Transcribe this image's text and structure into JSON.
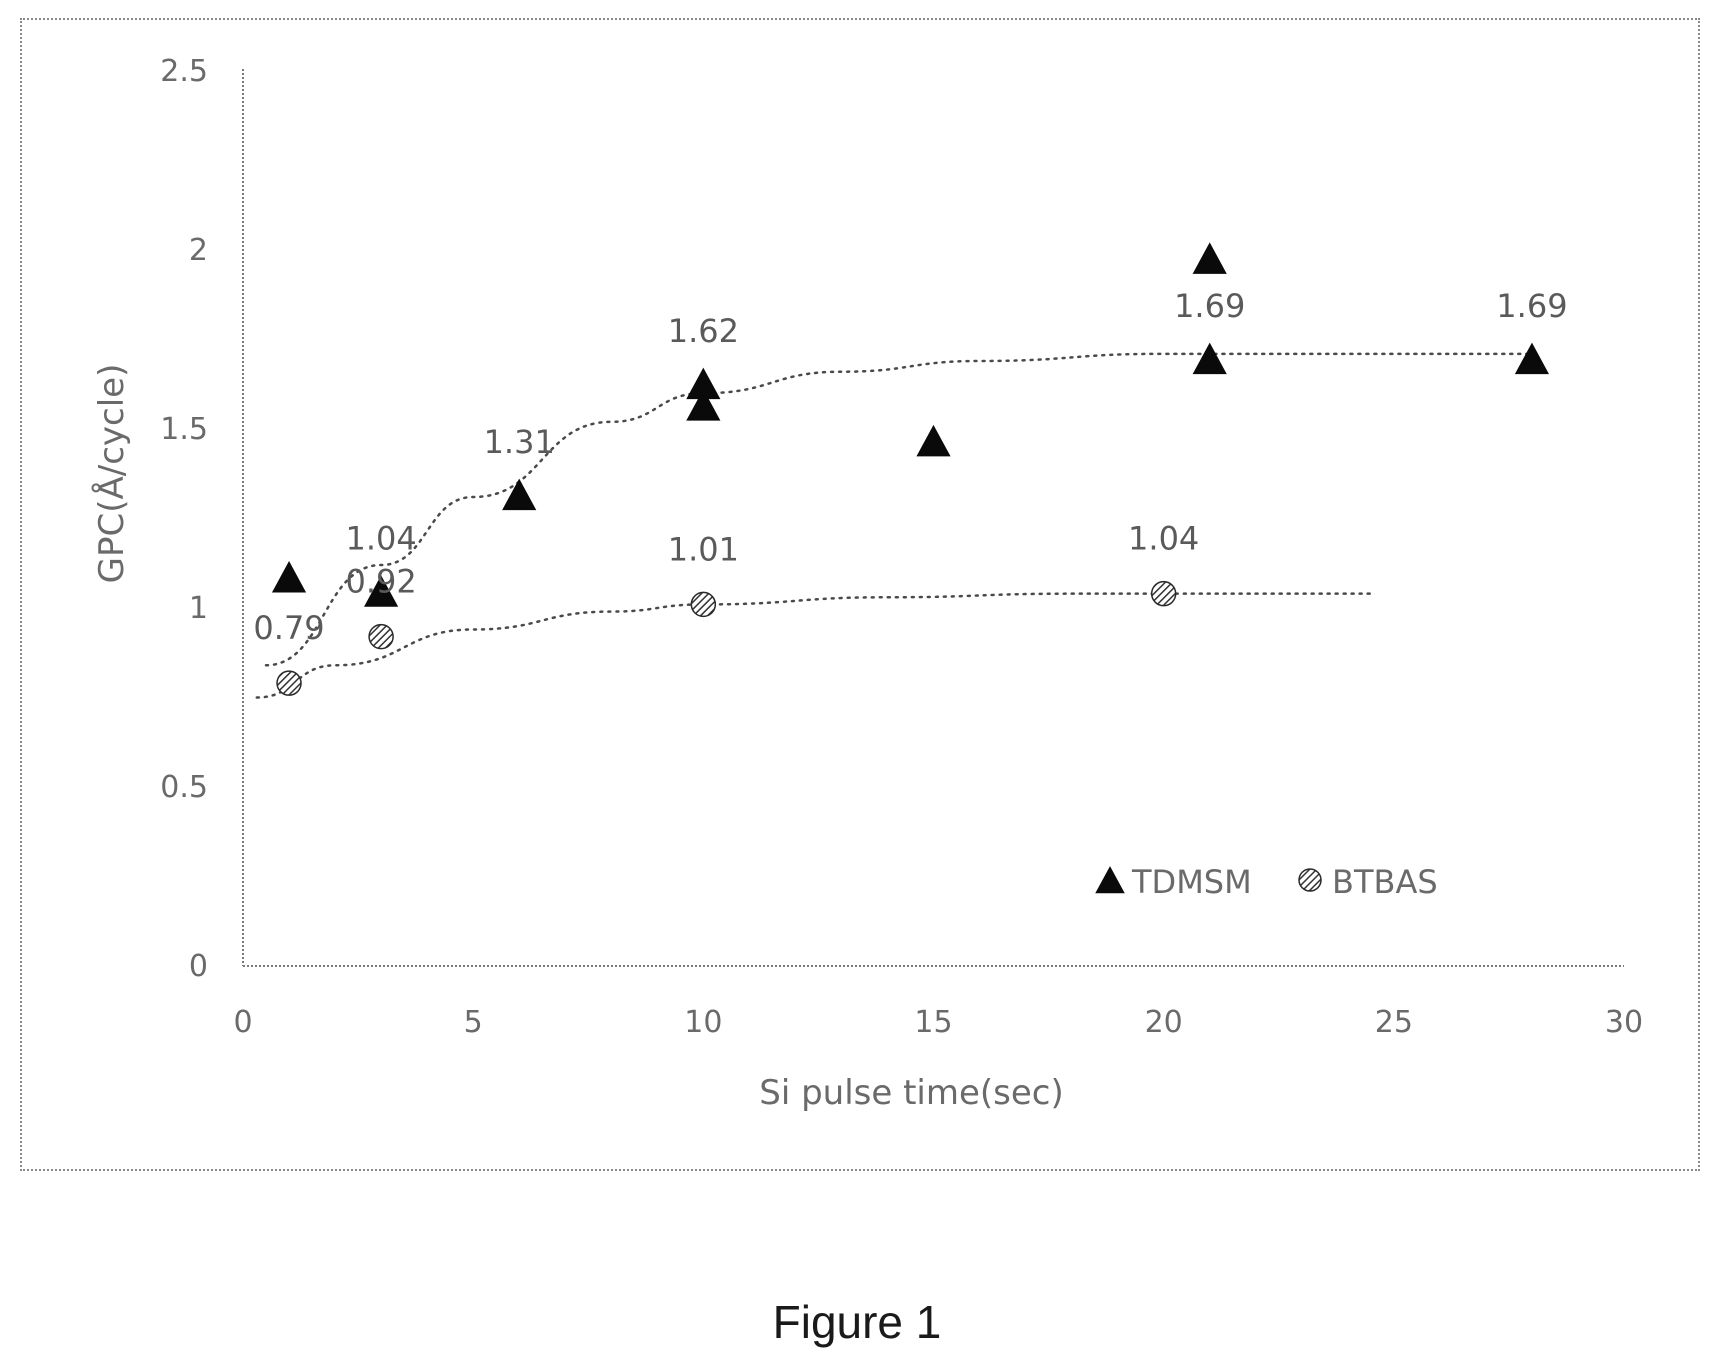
{
  "caption": "Figure 1",
  "chart_data": {
    "type": "scatter",
    "title": "",
    "xlabel": "Si pulse time(sec)",
    "ylabel": "GPC(Å/cycle)",
    "xlim": [
      0,
      30
    ],
    "ylim": [
      0,
      2.5
    ],
    "x_ticks": [
      "0",
      "5",
      "10",
      "15",
      "20",
      "25",
      "30"
    ],
    "y_ticks": [
      "0",
      "0.5",
      "1",
      "1.5",
      "2",
      "2.5"
    ],
    "grid": false,
    "legend_position": "bottom-right",
    "series": [
      {
        "name": "TDMSM",
        "marker": "triangle",
        "color": "#000000",
        "points": [
          {
            "x": 1,
            "y": 1.08
          },
          {
            "x": 3,
            "y": 1.04
          },
          {
            "x": 6,
            "y": 1.31
          },
          {
            "x": 10,
            "y": 1.62
          },
          {
            "x": 10,
            "y": 1.56
          },
          {
            "x": 15,
            "y": 1.46
          },
          {
            "x": 21,
            "y": 1.97
          },
          {
            "x": 21,
            "y": 1.69
          },
          {
            "x": 28,
            "y": 1.69
          }
        ],
        "labels": [
          {
            "x": 3,
            "y": 1.04,
            "text": "1.04"
          },
          {
            "x": 6,
            "y": 1.31,
            "text": "1.31"
          },
          {
            "x": 10,
            "y": 1.62,
            "text": "1.62"
          },
          {
            "x": 21,
            "y": 1.69,
            "text": "1.69"
          },
          {
            "x": 28,
            "y": 1.69,
            "text": "1.69"
          }
        ],
        "trend": {
          "from_x": 0.5,
          "to_x": 28,
          "points": [
            {
              "x": 0.5,
              "y": 0.84
            },
            {
              "x": 3,
              "y": 1.12
            },
            {
              "x": 5,
              "y": 1.31
            },
            {
              "x": 8,
              "y": 1.52
            },
            {
              "x": 10,
              "y": 1.6
            },
            {
              "x": 13,
              "y": 1.66
            },
            {
              "x": 16,
              "y": 1.69
            },
            {
              "x": 20,
              "y": 1.71
            },
            {
              "x": 24,
              "y": 1.71
            },
            {
              "x": 28,
              "y": 1.71
            }
          ]
        }
      },
      {
        "name": "BTBAS",
        "marker": "hatched-circle",
        "color": "#555555",
        "points": [
          {
            "x": 1,
            "y": 0.79
          },
          {
            "x": 3,
            "y": 0.92
          },
          {
            "x": 10,
            "y": 1.01
          },
          {
            "x": 20,
            "y": 1.04
          }
        ],
        "labels": [
          {
            "x": 1,
            "y": 0.79,
            "text": "0.79"
          },
          {
            "x": 3,
            "y": 0.92,
            "text": "0.92"
          },
          {
            "x": 10,
            "y": 1.01,
            "text": "1.01"
          },
          {
            "x": 20,
            "y": 1.04,
            "text": "1.04"
          }
        ],
        "trend": {
          "from_x": 0.3,
          "to_x": 24.5,
          "points": [
            {
              "x": 0.3,
              "y": 0.75
            },
            {
              "x": 2,
              "y": 0.84
            },
            {
              "x": 5,
              "y": 0.94
            },
            {
              "x": 8,
              "y": 0.99
            },
            {
              "x": 10,
              "y": 1.01
            },
            {
              "x": 14,
              "y": 1.03
            },
            {
              "x": 18,
              "y": 1.04
            },
            {
              "x": 24.5,
              "y": 1.04
            }
          ]
        }
      }
    ]
  }
}
